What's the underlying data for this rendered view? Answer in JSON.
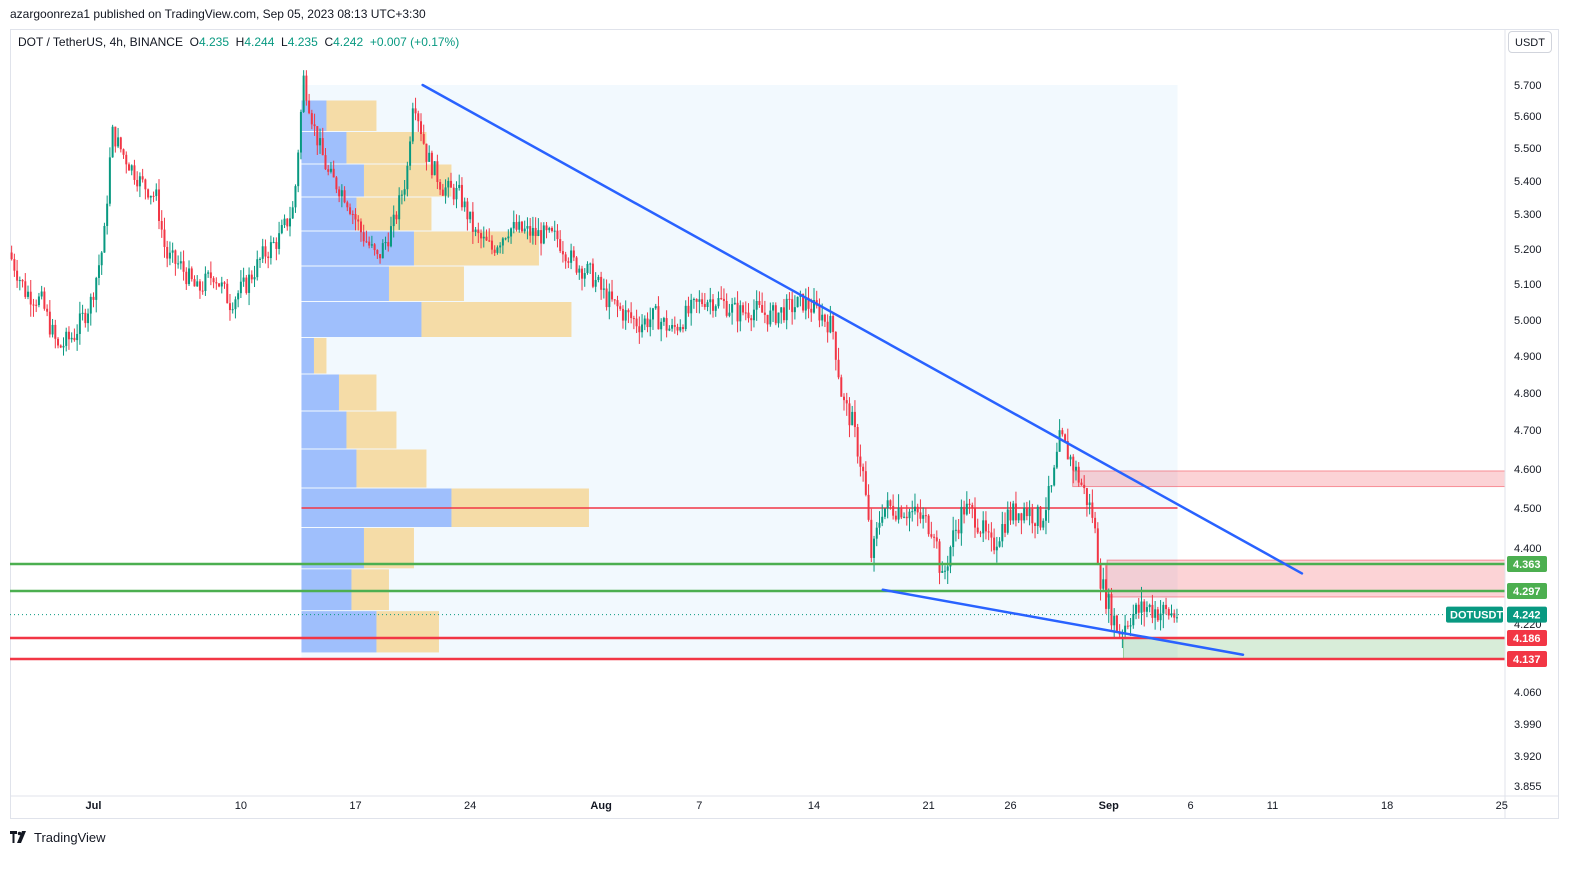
{
  "header": {
    "publish_line": "azargoonreza1 published on TradingView.com, Sep 05, 2023 08:13 UTC+3:30",
    "symbol": "DOT / TetherUS, 4h, BINANCE",
    "ohlc": [
      {
        "label": "O",
        "value": "4.235"
      },
      {
        "label": "H",
        "value": "4.244"
      },
      {
        "label": "L",
        "value": "4.235"
      },
      {
        "label": "C",
        "value": "4.242"
      }
    ],
    "change": "+0.007 (+0.17%)",
    "currency": "USDT"
  },
  "footer": {
    "brand": "TradingView"
  },
  "colors": {
    "up": "#089981",
    "down": "#f23645",
    "trendline": "#2962ff",
    "support": "#f23645",
    "resistance": "#4caf50",
    "vp_up": "#5b8ff9",
    "vp_down": "#f7c45f"
  },
  "chart_data": {
    "type": "candlestick",
    "y_axis": {
      "min": 3.83,
      "max": 5.76,
      "ticks": [
        "5.700",
        "5.600",
        "5.500",
        "5.400",
        "5.300",
        "5.200",
        "5.100",
        "5.000",
        "4.900",
        "4.800",
        "4.700",
        "4.600",
        "4.500",
        "4.400",
        "4.220",
        "4.060",
        "3.990",
        "3.920",
        "3.855"
      ]
    },
    "x_axis": {
      "ticks": [
        {
          "label": "Jul",
          "day": 1
        },
        {
          "label": "10",
          "day": 10
        },
        {
          "label": "17",
          "day": 17
        },
        {
          "label": "24",
          "day": 24
        },
        {
          "label": "Aug",
          "day": 32
        },
        {
          "label": "7",
          "day": 38
        },
        {
          "label": "14",
          "day": 45
        },
        {
          "label": "21",
          "day": 52
        },
        {
          "label": "26",
          "day": 57
        },
        {
          "label": "Sep",
          "day": 63
        },
        {
          "label": "6",
          "day": 68
        },
        {
          "label": "11",
          "day": 73
        },
        {
          "label": "18",
          "day": 80
        },
        {
          "label": "25",
          "day": 87
        }
      ],
      "start_day": -4.1,
      "end_day": 87.2,
      "last_candle_day": 67.2
    },
    "price_path": [
      [
        -4,
        5.19
      ],
      [
        -3,
        5.08
      ],
      [
        -2,
        5.05
      ],
      [
        -1,
        4.92
      ],
      [
        0,
        4.96
      ],
      [
        1,
        5.05
      ],
      [
        1.8,
        5.22
      ],
      [
        2.3,
        5.55
      ],
      [
        3,
        5.48
      ],
      [
        4,
        5.4
      ],
      [
        5,
        5.35
      ],
      [
        5.6,
        5.18
      ],
      [
        6.5,
        5.15
      ],
      [
        7.5,
        5.08
      ],
      [
        8.5,
        5.13
      ],
      [
        9.5,
        5.05
      ],
      [
        10.5,
        5.1
      ],
      [
        11.5,
        5.18
      ],
      [
        12.5,
        5.23
      ],
      [
        13.4,
        5.32
      ],
      [
        14,
        5.72
      ],
      [
        14.7,
        5.55
      ],
      [
        15.5,
        5.42
      ],
      [
        16.5,
        5.36
      ],
      [
        17.5,
        5.25
      ],
      [
        18.5,
        5.17
      ],
      [
        19.5,
        5.27
      ],
      [
        20.3,
        5.42
      ],
      [
        20.7,
        5.67
      ],
      [
        21.5,
        5.48
      ],
      [
        22.5,
        5.38
      ],
      [
        23.5,
        5.36
      ],
      [
        24.5,
        5.24
      ],
      [
        25.5,
        5.2
      ],
      [
        26.5,
        5.26
      ],
      [
        27.5,
        5.25
      ],
      [
        28.5,
        5.24
      ],
      [
        29.5,
        5.23
      ],
      [
        30.5,
        5.16
      ],
      [
        31.5,
        5.13
      ],
      [
        32.5,
        5.06
      ],
      [
        33.5,
        5.02
      ],
      [
        34.5,
        4.99
      ],
      [
        35.5,
        5.01
      ],
      [
        36.5,
        4.97
      ],
      [
        37.5,
        5.02
      ],
      [
        38.5,
        5.06
      ],
      [
        39.5,
        5.05
      ],
      [
        40.5,
        5.02
      ],
      [
        41.5,
        5.03
      ],
      [
        42.5,
        5.01
      ],
      [
        43.5,
        5.03
      ],
      [
        44.5,
        5.05
      ],
      [
        45.5,
        5.02
      ],
      [
        46.3,
        4.98
      ],
      [
        46.9,
        4.78
      ],
      [
        47.5,
        4.72
      ],
      [
        48.2,
        4.58
      ],
      [
        48.7,
        4.37
      ],
      [
        49.3,
        4.5
      ],
      [
        50.5,
        4.5
      ],
      [
        51.5,
        4.48
      ],
      [
        52.5,
        4.45
      ],
      [
        53,
        4.32
      ],
      [
        53.6,
        4.42
      ],
      [
        54.3,
        4.5
      ],
      [
        55,
        4.48
      ],
      [
        56,
        4.4
      ],
      [
        57,
        4.48
      ],
      [
        58,
        4.5
      ],
      [
        59,
        4.47
      ],
      [
        59.7,
        4.55
      ],
      [
        60.2,
        4.68
      ],
      [
        60.8,
        4.63
      ],
      [
        61.5,
        4.56
      ],
      [
        62.2,
        4.48
      ],
      [
        62.7,
        4.32
      ],
      [
        63.2,
        4.26
      ],
      [
        63.8,
        4.2
      ],
      [
        64.5,
        4.24
      ],
      [
        65.5,
        4.26
      ],
      [
        66.2,
        4.25
      ],
      [
        67.2,
        4.242
      ]
    ],
    "trendlines": [
      {
        "from": [
          21.1,
          5.7
        ],
        "to": [
          74.8,
          4.34
        ]
      },
      {
        "from": [
          49.2,
          4.3
        ],
        "to": [
          71.2,
          4.147
        ]
      }
    ],
    "horizontal_lines": [
      {
        "price": 4.363,
        "label": "4.363",
        "kind": "resistance"
      },
      {
        "price": 4.297,
        "label": "4.297",
        "kind": "resistance"
      },
      {
        "price": 4.186,
        "label": "4.186",
        "kind": "support"
      },
      {
        "price": 4.137,
        "label": "4.137",
        "kind": "support"
      }
    ],
    "poc_line": {
      "price": 4.5,
      "from_day": 13.7,
      "to_day": 67.2
    },
    "zones": [
      {
        "from_day": 60.8,
        "to_day": 87.2,
        "top": 4.595,
        "bottom": 4.555,
        "kind": "supply"
      },
      {
        "from_day": 62.9,
        "to_day": 87.2,
        "top": 4.372,
        "bottom": 4.283,
        "kind": "supply"
      },
      {
        "from_day": 63.9,
        "to_day": 87.2,
        "top": 4.186,
        "bottom": 4.137,
        "kind": "demand"
      }
    ],
    "profile_range": {
      "from_day": 13.7,
      "to_day": 67.2,
      "top": 5.7,
      "bottom": 4.14
    },
    "volume_profile": [
      {
        "price": 5.6,
        "up": 0.1,
        "down": 0.2
      },
      {
        "price": 5.5,
        "up": 0.18,
        "down": 0.32
      },
      {
        "price": 5.4,
        "up": 0.25,
        "down": 0.35
      },
      {
        "price": 5.3,
        "up": 0.22,
        "down": 0.3
      },
      {
        "price": 5.2,
        "up": 0.45,
        "down": 0.5
      },
      {
        "price": 5.1,
        "up": 0.35,
        "down": 0.3
      },
      {
        "price": 5.0,
        "up": 0.48,
        "down": 0.6
      },
      {
        "price": 4.9,
        "up": 0.05,
        "down": 0.05
      },
      {
        "price": 4.8,
        "up": 0.15,
        "down": 0.15
      },
      {
        "price": 4.7,
        "up": 0.18,
        "down": 0.2
      },
      {
        "price": 4.6,
        "up": 0.22,
        "down": 0.28
      },
      {
        "price": 4.5,
        "up": 0.6,
        "down": 0.55
      },
      {
        "price": 4.4,
        "up": 0.25,
        "down": 0.2
      },
      {
        "price": 4.3,
        "up": 0.2,
        "down": 0.15
      },
      {
        "price": 4.2,
        "up": 0.3,
        "down": 0.25
      }
    ],
    "last_price": {
      "symbol": "DOTUSDT",
      "value": "4.242",
      "price": 4.242
    }
  }
}
